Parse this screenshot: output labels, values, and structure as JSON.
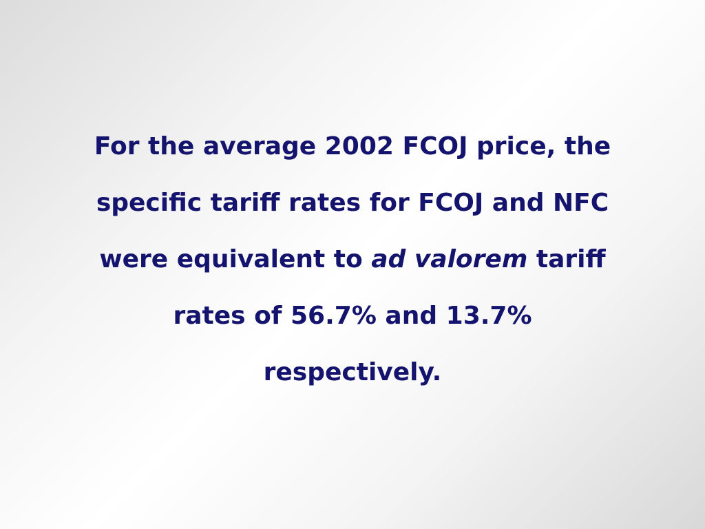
{
  "slide": {
    "lines": [
      "For the average 2002 FCOJ price, the",
      "specific tariff rates for FCOJ and NFC",
      {
        "before": "were equivalent to",
        "emphasis": "ad valorem",
        "after": "tariff"
      },
      "rates of 56.7% and 13.7%",
      "respectively."
    ]
  }
}
